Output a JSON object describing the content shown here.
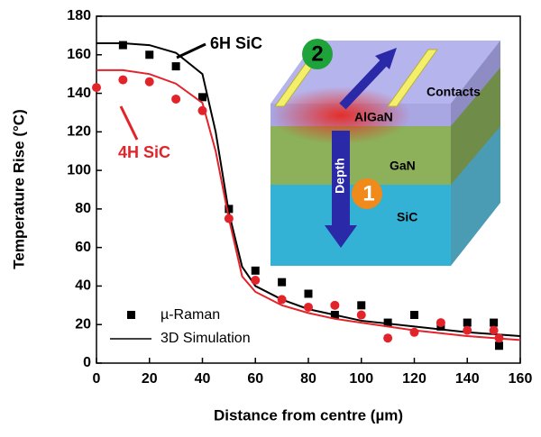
{
  "chart_data": {
    "type": "scatter-line",
    "xlabel": "Distance from centre (µm)",
    "ylabel": "Temperature Rise (°C)",
    "xlim": [
      0,
      160
    ],
    "ylim": [
      0,
      180
    ],
    "xticks": [
      0,
      20,
      40,
      60,
      80,
      100,
      120,
      140,
      160
    ],
    "yticks": [
      0,
      20,
      40,
      60,
      80,
      100,
      120,
      140,
      160,
      180
    ],
    "legend": {
      "markers": "µ-Raman",
      "lines": "3D Simulation"
    },
    "groups": [
      {
        "name": "6H SiC",
        "color": "#000000",
        "marker": "square",
        "raman": {
          "x": [
            10,
            20,
            30,
            40,
            50,
            60,
            70,
            80,
            90,
            100,
            110,
            120,
            130,
            140,
            150,
            152
          ],
          "values": [
            165,
            160,
            154,
            138,
            80,
            48,
            42,
            36,
            25,
            30,
            21,
            25,
            19,
            21,
            21,
            9
          ]
        },
        "simulation": {
          "x": [
            0,
            10,
            20,
            30,
            40,
            45,
            50,
            55,
            60,
            70,
            80,
            90,
            100,
            120,
            140,
            160
          ],
          "values": [
            166,
            166,
            165,
            161,
            150,
            120,
            78,
            50,
            40,
            33,
            28,
            25,
            22,
            19,
            16,
            14
          ]
        }
      },
      {
        "name": "4H SiC",
        "color": "#e3232a",
        "marker": "circle",
        "raman": {
          "x": [
            0,
            10,
            20,
            30,
            40,
            50,
            60,
            70,
            80,
            90,
            100,
            110,
            120,
            130,
            140,
            150,
            152
          ],
          "values": [
            143,
            147,
            146,
            137,
            131,
            75,
            43,
            33,
            29,
            30,
            25,
            13,
            16,
            21,
            17,
            17,
            13
          ]
        },
        "simulation": {
          "x": [
            0,
            10,
            20,
            30,
            40,
            45,
            50,
            55,
            60,
            70,
            80,
            90,
            100,
            120,
            140,
            160
          ],
          "values": [
            152,
            152,
            150,
            145,
            135,
            110,
            75,
            45,
            37,
            30,
            26,
            23,
            21,
            17,
            14,
            12
          ]
        }
      }
    ]
  },
  "inset": {
    "contacts": "Contacts",
    "algan": "AlGaN",
    "gan": "GaN",
    "sic": "SiC",
    "depth": "Depth",
    "marker_2": "2",
    "marker_1": "1"
  }
}
